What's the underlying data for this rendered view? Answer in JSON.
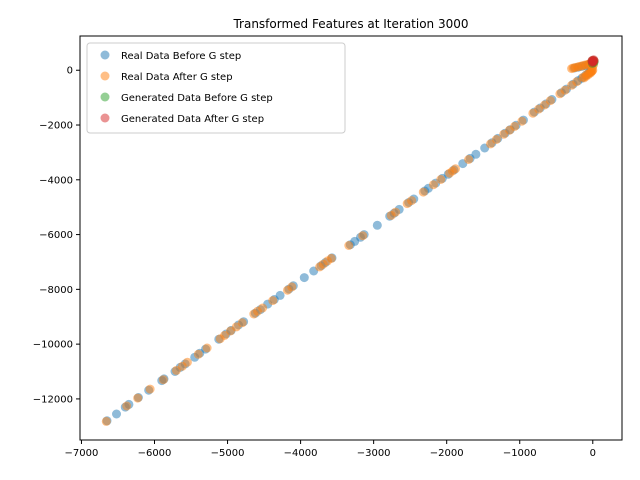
{
  "chart_data": {
    "type": "scatter",
    "title": "Transformed Features at Iteration 3000",
    "xlabel": "",
    "ylabel": "",
    "xlim": [
      -7020,
      400
    ],
    "ylim": [
      -13500,
      1250
    ],
    "x_ticks": [
      -7000,
      -6000,
      -5000,
      -4000,
      -3000,
      -2000,
      -1000,
      0
    ],
    "x_tick_labels": [
      "−7000",
      "−6000",
      "−5000",
      "−4000",
      "−3000",
      "−2000",
      "−1000",
      "0"
    ],
    "y_ticks": [
      -12000,
      -10000,
      -8000,
      -6000,
      -4000,
      -2000,
      0
    ],
    "y_tick_labels": [
      "−12000",
      "−10000",
      "−8000",
      "−6000",
      "−4000",
      "−2000",
      "0"
    ],
    "grid": false,
    "legend_position": "upper-left",
    "series": [
      {
        "name": "Real Data Before G step",
        "color": "#1f77b4",
        "alpha": 0.5,
        "points": [
          [
            -6650,
            -12800
          ],
          [
            -6520,
            -12550
          ],
          [
            -6400,
            -12300
          ],
          [
            -6350,
            -12200
          ],
          [
            -6220,
            -11950
          ],
          [
            -6080,
            -11680
          ],
          [
            -5900,
            -11330
          ],
          [
            -5870,
            -11270
          ],
          [
            -5720,
            -11000
          ],
          [
            -5650,
            -10850
          ],
          [
            -5580,
            -10720
          ],
          [
            -5450,
            -10480
          ],
          [
            -5380,
            -10330
          ],
          [
            -5300,
            -10180
          ],
          [
            -5120,
            -9820
          ],
          [
            -5020,
            -9630
          ],
          [
            -4950,
            -9500
          ],
          [
            -4850,
            -9300
          ],
          [
            -4780,
            -9180
          ],
          [
            -4620,
            -8870
          ],
          [
            -4550,
            -8740
          ],
          [
            -4450,
            -8540
          ],
          [
            -4360,
            -8370
          ],
          [
            -4280,
            -8220
          ],
          [
            -4160,
            -7990
          ],
          [
            -4100,
            -7870
          ],
          [
            -3950,
            -7570
          ],
          [
            -3820,
            -7330
          ],
          [
            -3720,
            -7140
          ],
          [
            -3660,
            -7020
          ],
          [
            -3570,
            -6850
          ],
          [
            -3320,
            -6370
          ],
          [
            -3260,
            -6250
          ],
          [
            -3180,
            -6100
          ],
          [
            -3130,
            -6000
          ],
          [
            -2950,
            -5660
          ],
          [
            -2780,
            -5330
          ],
          [
            -2720,
            -5220
          ],
          [
            -2650,
            -5080
          ],
          [
            -2520,
            -4830
          ],
          [
            -2450,
            -4700
          ],
          [
            -2300,
            -4410
          ],
          [
            -2250,
            -4310
          ],
          [
            -2150,
            -4120
          ],
          [
            -2060,
            -3950
          ],
          [
            -1980,
            -3800
          ],
          [
            -1900,
            -3640
          ],
          [
            -1780,
            -3410
          ],
          [
            -1680,
            -3220
          ],
          [
            -1600,
            -3070
          ],
          [
            -1480,
            -2840
          ],
          [
            -1380,
            -2650
          ],
          [
            -1300,
            -2490
          ],
          [
            -1200,
            -2300
          ],
          [
            -1130,
            -2170
          ],
          [
            -1050,
            -2010
          ],
          [
            -950,
            -1820
          ],
          [
            -800,
            -1530
          ],
          [
            -720,
            -1380
          ],
          [
            -640,
            -1230
          ],
          [
            -560,
            -1070
          ],
          [
            -430,
            -820
          ],
          [
            -360,
            -690
          ],
          [
            -270,
            -510
          ],
          [
            -200,
            -380
          ],
          [
            -150,
            -290
          ],
          [
            -100,
            -190
          ],
          [
            -60,
            -110
          ],
          [
            -30,
            -50
          ],
          [
            -250,
            80
          ],
          [
            -200,
            110
          ],
          [
            -150,
            140
          ],
          [
            -100,
            170
          ],
          [
            -60,
            200
          ],
          [
            -20,
            230
          ]
        ]
      },
      {
        "name": "Real Data After G step",
        "color": "#ff7f0e",
        "alpha": 0.5,
        "points": [
          [
            -6660,
            -12820
          ],
          [
            -6380,
            -12260
          ],
          [
            -6230,
            -11970
          ],
          [
            -6060,
            -11640
          ],
          [
            -5880,
            -11300
          ],
          [
            -5700,
            -10960
          ],
          [
            -5620,
            -10810
          ],
          [
            -5550,
            -10660
          ],
          [
            -5400,
            -10370
          ],
          [
            -5280,
            -10140
          ],
          [
            -5100,
            -9800
          ],
          [
            -5040,
            -9680
          ],
          [
            -4960,
            -9520
          ],
          [
            -4880,
            -9370
          ],
          [
            -4800,
            -9220
          ],
          [
            -4640,
            -8900
          ],
          [
            -4590,
            -8800
          ],
          [
            -4520,
            -8680
          ],
          [
            -4380,
            -8410
          ],
          [
            -4180,
            -8030
          ],
          [
            -4120,
            -7910
          ],
          [
            -3740,
            -7180
          ],
          [
            -3690,
            -7080
          ],
          [
            -3630,
            -6960
          ],
          [
            -3580,
            -6870
          ],
          [
            -3340,
            -6400
          ],
          [
            -3150,
            -6040
          ],
          [
            -2760,
            -5300
          ],
          [
            -2700,
            -5180
          ],
          [
            -2540,
            -4870
          ],
          [
            -2480,
            -4760
          ],
          [
            -2320,
            -4450
          ],
          [
            -2180,
            -4180
          ],
          [
            -2080,
            -3990
          ],
          [
            -1960,
            -3760
          ],
          [
            -1920,
            -3680
          ],
          [
            -1880,
            -3600
          ],
          [
            -1700,
            -3260
          ],
          [
            -1400,
            -2690
          ],
          [
            -1320,
            -2530
          ],
          [
            -1220,
            -2340
          ],
          [
            -1140,
            -2190
          ],
          [
            -1070,
            -2050
          ],
          [
            -970,
            -1860
          ],
          [
            -820,
            -1570
          ],
          [
            -740,
            -1420
          ],
          [
            -660,
            -1270
          ],
          [
            -580,
            -1110
          ],
          [
            -450,
            -860
          ],
          [
            -380,
            -730
          ],
          [
            -290,
            -550
          ],
          [
            -220,
            -420
          ],
          [
            -130,
            -250
          ],
          [
            -80,
            -150
          ],
          [
            -40,
            -80
          ],
          [
            -10,
            -20
          ],
          [
            -290,
            60
          ],
          [
            -270,
            80
          ],
          [
            -240,
            100
          ],
          [
            -210,
            120
          ],
          [
            -180,
            140
          ],
          [
            -150,
            160
          ],
          [
            -120,
            180
          ],
          [
            -90,
            200
          ],
          [
            -60,
            220
          ],
          [
            -40,
            240
          ],
          [
            -20,
            260
          ],
          [
            -120,
            -280
          ],
          [
            -90,
            -220
          ],
          [
            -60,
            -160
          ],
          [
            -30,
            -100
          ],
          [
            -15,
            -50
          ],
          [
            0,
            0
          ],
          [
            -5,
            100
          ],
          [
            10,
            200
          ]
        ]
      },
      {
        "name": "Generated Data Before G step",
        "color": "#2ca02c",
        "alpha": 0.5,
        "points": [
          [
            0,
            300
          ],
          [
            10,
            320
          ],
          [
            -10,
            340
          ],
          [
            5,
            360
          ],
          [
            15,
            280
          ],
          [
            -5,
            250
          ],
          [
            20,
            330
          ]
        ]
      },
      {
        "name": "Generated Data After G step",
        "color": "#d62728",
        "alpha": 0.5,
        "points": [
          [
            0,
            320
          ],
          [
            10,
            340
          ],
          [
            -8,
            360
          ],
          [
            5,
            300
          ],
          [
            12,
            380
          ],
          [
            -3,
            280
          ],
          [
            18,
            350
          ],
          [
            -12,
            330
          ]
        ]
      }
    ]
  }
}
